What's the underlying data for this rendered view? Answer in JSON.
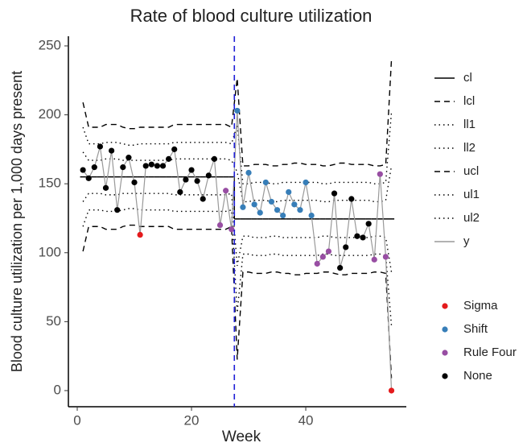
{
  "chart_data": {
    "type": "line",
    "title": "Rate of blood culture utilization",
    "x_label": "Week",
    "y_label": "Blood culture utilization per 1,000 days present",
    "x": [
      1,
      2,
      3,
      4,
      5,
      6,
      7,
      8,
      9,
      10,
      11,
      12,
      13,
      14,
      15,
      16,
      17,
      18,
      19,
      20,
      21,
      22,
      23,
      24,
      25,
      26,
      27,
      28,
      29,
      30,
      31,
      32,
      33,
      34,
      35,
      36,
      37,
      38,
      39,
      40,
      41,
      42,
      43,
      44,
      45,
      46,
      47,
      48,
      49,
      50,
      51,
      52,
      53,
      54,
      55
    ],
    "series": [
      {
        "name": "cl",
        "color": "#000000",
        "dash": "solid",
        "step": true,
        "values": [
          155,
          155,
          155,
          155,
          155,
          155,
          155,
          155,
          155,
          155,
          155,
          155,
          155,
          155,
          155,
          155,
          155,
          155,
          155,
          155,
          155,
          155,
          155,
          155,
          155,
          155,
          155,
          124.5,
          124.5,
          124.5,
          124.5,
          124.5,
          124.5,
          124.5,
          124.5,
          124.5,
          124.5,
          124.5,
          124.5,
          124.5,
          124.5,
          124.5,
          124.5,
          124.5,
          124.5,
          124.5,
          124.5,
          124.5,
          124.5,
          124.5,
          124.5,
          124.5,
          124.5,
          124.5,
          124.5
        ]
      },
      {
        "name": "lcl",
        "color": "#000000",
        "dash": "dashed",
        "values": [
          101,
          119,
          119,
          119,
          117,
          117,
          117,
          119,
          120,
          120,
          119,
          119,
          119,
          119,
          119,
          119,
          117,
          117,
          117,
          117,
          117,
          117,
          117,
          117,
          117,
          117,
          119,
          22.5,
          86,
          86,
          85,
          85,
          85,
          86,
          86,
          85,
          85,
          84,
          84,
          85,
          85,
          85,
          86,
          86,
          85,
          84,
          84,
          85,
          85,
          85,
          85,
          86,
          86,
          85,
          9
        ]
      },
      {
        "name": "ll1",
        "color": "#000000",
        "dash": "dotted",
        "values": [
          137,
          143,
          143,
          143,
          142,
          142,
          142,
          143,
          143,
          143,
          143,
          143,
          143,
          143,
          143,
          143,
          142,
          142,
          142,
          142,
          142,
          142,
          142,
          142,
          142,
          142,
          143,
          90.5,
          112,
          112,
          111,
          111,
          111,
          112,
          112,
          111,
          111,
          111,
          111,
          111,
          111,
          111,
          112,
          112,
          111,
          111,
          111,
          111,
          111,
          111,
          111,
          112,
          112,
          111,
          86
        ]
      },
      {
        "name": "ll2",
        "color": "#000000",
        "dash": "dotted",
        "values": [
          119,
          131,
          131,
          131,
          130,
          130,
          130,
          131,
          132,
          132,
          131,
          131,
          131,
          131,
          131,
          131,
          130,
          130,
          130,
          130,
          130,
          130,
          130,
          130,
          130,
          130,
          131,
          56.5,
          99,
          99,
          98,
          98,
          98,
          99,
          99,
          98,
          98,
          98,
          98,
          98,
          98,
          98,
          99,
          99,
          98,
          98,
          98,
          98,
          98,
          98,
          98,
          99,
          99,
          98,
          47
        ]
      },
      {
        "name": "ucl",
        "color": "#000000",
        "dash": "dashed",
        "values": [
          209,
          191,
          191,
          191,
          193,
          193,
          193,
          191,
          190,
          190,
          191,
          191,
          191,
          191,
          191,
          191,
          193,
          193,
          193,
          193,
          193,
          193,
          193,
          193,
          193,
          193,
          191,
          226.5,
          163,
          163,
          164,
          164,
          164,
          163,
          163,
          164,
          164,
          165,
          165,
          164,
          164,
          164,
          163,
          163,
          164,
          165,
          165,
          164,
          164,
          164,
          164,
          163,
          163,
          164,
          240
        ]
      },
      {
        "name": "ul1",
        "color": "#000000",
        "dash": "dotted",
        "values": [
          173,
          167,
          167,
          167,
          168,
          168,
          168,
          167,
          167,
          167,
          167,
          167,
          167,
          167,
          167,
          167,
          168,
          168,
          168,
          168,
          168,
          168,
          168,
          168,
          168,
          168,
          167,
          158.5,
          137,
          137,
          138,
          138,
          138,
          137,
          137,
          138,
          138,
          138,
          138,
          138,
          138,
          138,
          137,
          137,
          138,
          138,
          138,
          138,
          138,
          138,
          138,
          137,
          137,
          138,
          163
        ]
      },
      {
        "name": "ul2",
        "color": "#000000",
        "dash": "dotted",
        "values": [
          191,
          179,
          179,
          179,
          180,
          180,
          180,
          179,
          178,
          178,
          179,
          179,
          179,
          179,
          179,
          179,
          180,
          180,
          180,
          180,
          180,
          180,
          180,
          180,
          180,
          180,
          179,
          192.5,
          150,
          150,
          151,
          151,
          151,
          150,
          150,
          151,
          151,
          151,
          151,
          151,
          151,
          151,
          150,
          150,
          151,
          151,
          151,
          151,
          151,
          151,
          151,
          150,
          150,
          151,
          202
        ]
      },
      {
        "name": "y",
        "color": "#999999",
        "dash": "solid",
        "markers": true,
        "values": [
          160,
          154,
          162,
          177,
          147,
          174,
          131,
          162,
          169,
          151,
          113,
          163,
          164,
          163,
          163,
          168,
          175,
          144,
          153,
          160,
          152,
          139,
          156,
          168,
          120,
          145,
          117,
          203,
          133,
          158,
          135,
          129,
          151,
          137,
          131,
          127,
          144,
          135,
          131,
          151,
          127,
          92,
          97,
          101,
          143,
          89,
          104,
          139,
          112,
          111,
          121,
          95,
          157,
          97,
          0
        ],
        "point_rule": [
          "None",
          "None",
          "None",
          "None",
          "None",
          "None",
          "None",
          "None",
          "None",
          "None",
          "Sigma",
          "None",
          "None",
          "None",
          "None",
          "None",
          "None",
          "None",
          "None",
          "None",
          "None",
          "None",
          "None",
          "None",
          "Rule Four",
          "Rule Four",
          "Rule Four",
          "Shift",
          "Shift",
          "Shift",
          "Shift",
          "Shift",
          "Shift",
          "Shift",
          "Shift",
          "Shift",
          "Shift",
          "Shift",
          "Shift",
          "Shift",
          "Shift",
          "Rule Four",
          "Rule Four",
          "Rule Four",
          "None",
          "None",
          "None",
          "None",
          "None",
          "None",
          "None",
          "Rule Four",
          "Rule Four",
          "Rule Four",
          "Sigma"
        ]
      }
    ],
    "point_legend": [
      {
        "name": "Sigma",
        "color": "#e41a1c"
      },
      {
        "name": "Shift",
        "color": "#377eb8"
      },
      {
        "name": "Rule Four",
        "color": "#984ea3"
      },
      {
        "name": "None",
        "color": "#000000"
      }
    ],
    "vline": {
      "value": 27.5,
      "color": "#1f1fd6",
      "dash": "dashed"
    },
    "xlim": [
      -1.55,
      57.6
    ],
    "ylim": [
      -11.7,
      257
    ],
    "xticks": [
      0,
      20,
      40
    ],
    "yticks": [
      0,
      50,
      100,
      150,
      200,
      250
    ],
    "grid": false
  }
}
